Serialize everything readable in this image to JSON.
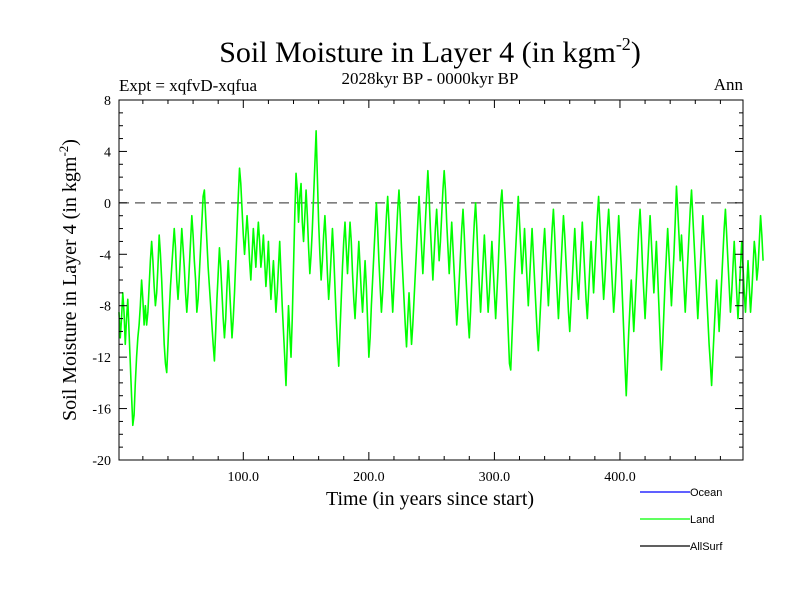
{
  "chart_data": {
    "type": "line",
    "title": "Soil Moisture in Layer 4 (in kgm",
    "title_sup": "-2",
    "title_close": ")",
    "subtitle_left": "Expt = xqfvD-xqfua",
    "subtitle_center": "2028kyr BP - 0000kyr BP",
    "subtitle_right": "Ann",
    "xlabel": "Time (in years since start)",
    "ylabel": "Soil Moisture in Layer 4 (in kgm",
    "ylabel_sup": "-2",
    "ylabel_close": ")",
    "xlim": [
      1,
      498
    ],
    "ylim": [
      -20,
      8
    ],
    "x_ticks": [
      100,
      200,
      300,
      400
    ],
    "x_tick_labels": [
      "100.0",
      "200.0",
      "300.0",
      "400.0"
    ],
    "y_ticks": [
      8,
      4,
      0,
      -4,
      -8,
      -12,
      -16,
      -20
    ],
    "y_tick_labels": [
      "8",
      "4",
      "0",
      "-4",
      "-8",
      "-12",
      "-16",
      "-20"
    ],
    "reference_line": {
      "y": 0,
      "style": "dashed",
      "color": "#555555"
    },
    "legend": [
      {
        "name": "Ocean",
        "color": "#0000ff"
      },
      {
        "name": "Land",
        "color": "#00ff00"
      },
      {
        "name": "AllSurf",
        "color": "#000000"
      }
    ],
    "legend_position": "bottom-right",
    "series": [
      {
        "name": "Land",
        "color": "#00ff00",
        "x_start": 1,
        "x_step": 1,
        "values": [
          -8.5,
          -10.5,
          -9,
          -7,
          -8.5,
          -11,
          -9,
          -7.5,
          -10,
          -12.5,
          -15,
          -17.3,
          -16.5,
          -14,
          -12,
          -10.5,
          -9.5,
          -8,
          -6,
          -7.5,
          -9.5,
          -8,
          -9.5,
          -8.5,
          -6.5,
          -4.5,
          -3,
          -4.5,
          -6.5,
          -8,
          -7,
          -5,
          -2.5,
          -4,
          -6,
          -8.5,
          -11,
          -12.5,
          -13.2,
          -11,
          -8.5,
          -6.5,
          -5,
          -3.5,
          -2,
          -3.5,
          -6,
          -7.5,
          -6,
          -4,
          -2,
          -3.5,
          -5,
          -7,
          -8.5,
          -7,
          -5,
          -3,
          -1,
          -2.5,
          -4.5,
          -6,
          -8.5,
          -7.5,
          -5.5,
          -3.5,
          -1.5,
          0.5,
          1,
          -1,
          -3,
          -5,
          -6.5,
          -8,
          -9.5,
          -11,
          -12.3,
          -10,
          -7.5,
          -5.5,
          -3.5,
          -5,
          -7,
          -9,
          -10.5,
          -9,
          -6.5,
          -4.5,
          -6.5,
          -8.5,
          -10.5,
          -9,
          -7,
          -4.5,
          -2,
          0.5,
          2.7,
          1.5,
          -0.5,
          -2.5,
          -4,
          -2.5,
          -1,
          -2.5,
          -4.5,
          -6,
          -4,
          -2,
          -3.5,
          -5,
          -3,
          -1.5,
          -3,
          -5,
          -4,
          -2.5,
          -4.5,
          -6.5,
          -5,
          -3,
          -5.5,
          -7.5,
          -6,
          -4.5,
          -6.5,
          -8.5,
          -7,
          -5,
          -3,
          -5.5,
          -8,
          -10,
          -12,
          -14.2,
          -11,
          -8,
          -10,
          -12,
          -9,
          -5,
          -1,
          2.3,
          1,
          -1.5,
          0.5,
          1.5,
          -1.5,
          -3,
          -1,
          1,
          -1,
          -3.5,
          -5.5,
          -4,
          -2,
          0.5,
          3,
          5.6,
          2,
          -1.5,
          -4,
          -6,
          -4.5,
          -2.5,
          -1,
          -3,
          -5.5,
          -7.5,
          -6,
          -4,
          -2,
          -4,
          -6.5,
          -9,
          -11,
          -12.7,
          -10,
          -7.5,
          -5,
          -3,
          -1.5,
          -3.5,
          -5.5,
          -3.5,
          -1.5,
          -3,
          -5.5,
          -7.5,
          -9,
          -7,
          -5,
          -3,
          -5,
          -7,
          -8.5,
          -6.5,
          -4.5,
          -6.5,
          -9.2,
          -12,
          -10.5,
          -8,
          -6,
          -4,
          -2,
          0,
          -2,
          -4.5,
          -6.5,
          -8.5,
          -7,
          -5,
          -3,
          -1,
          0.5,
          -1.5,
          -4,
          -6.5,
          -8.5,
          -6.5,
          -4.5,
          -2.5,
          -0.5,
          1,
          -1,
          -3.5,
          -5.5,
          -7.5,
          -9.5,
          -11.2,
          -9,
          -7,
          -9,
          -11,
          -9.5,
          -7.5,
          -5.5,
          -3.5,
          -1.5,
          0.5,
          -1.5,
          -3.5,
          -5.5,
          -3.5,
          -1.5,
          0.5,
          2.5,
          0.5,
          -2,
          -4,
          -6,
          -4,
          -2,
          -0.5,
          -2.5,
          -4.5,
          -3,
          -1,
          1,
          2.5,
          1,
          -1.5,
          -3.5,
          -5.5,
          -3.5,
          -1.5,
          -3.5,
          -5.5,
          -7.5,
          -9.5,
          -8,
          -6,
          -4,
          -2,
          -0.5,
          -2.5,
          -5,
          -7,
          -9,
          -10.5,
          -8.5,
          -6,
          -3.5,
          -1.5,
          0,
          -2,
          -4.5,
          -6.5,
          -8.5,
          -6.5,
          -4.5,
          -2.5,
          -4.5,
          -6.5,
          -8.5,
          -7,
          -5,
          -3,
          -5,
          -7,
          -9,
          -7,
          -5,
          -2.5,
          0,
          1,
          -1,
          -3,
          -5,
          -7.5,
          -10,
          -12.5,
          -13,
          -10.5,
          -8,
          -5.5,
          -3.5,
          -1.5,
          0.5,
          -1.5,
          -3.5,
          -5.5,
          -4,
          -2,
          -4,
          -6,
          -8,
          -6,
          -4,
          -2,
          -4,
          -6,
          -8,
          -10,
          -11.5,
          -9.5,
          -7.5,
          -5.5,
          -3.5,
          -2,
          -4,
          -6,
          -8,
          -6,
          -4,
          -2,
          -0.5,
          -2.5,
          -5,
          -7,
          -9,
          -7,
          -5,
          -3,
          -1,
          -2.5,
          -4.5,
          -6.5,
          -8.5,
          -10,
          -8,
          -6,
          -4,
          -2,
          -4,
          -6,
          -7.5,
          -5.5,
          -3.5,
          -1.5,
          -3.5,
          -5.5,
          -7.5,
          -9,
          -7,
          -5,
          -3,
          -5,
          -7,
          -5,
          -3,
          -1,
          0.5,
          -1.5,
          -3.5,
          -5.5,
          -7.5,
          -6,
          -4,
          -2,
          -0.5,
          -2.5,
          -4.5,
          -6.5,
          -8.5,
          -7,
          -5,
          -3,
          -1,
          -3,
          -5,
          -7.5,
          -10,
          -12.5,
          -15,
          -12.5,
          -10,
          -8,
          -6,
          -8,
          -10,
          -8,
          -6,
          -4,
          -2,
          -0.5,
          -2.5,
          -5,
          -7,
          -9,
          -7,
          -5,
          -3,
          -1,
          -3,
          -5,
          -7,
          -5,
          -3,
          -5.5,
          -8,
          -10.5,
          -13,
          -11,
          -8.5,
          -6,
          -4,
          -2,
          -4,
          -6,
          -8,
          -6,
          -4,
          -1.5,
          1.3,
          -0.5,
          -2.5,
          -4.5,
          -2.5,
          -4.5,
          -6.5,
          -8.5,
          -6.5,
          -4.5,
          -2.5,
          -0.5,
          1,
          -1,
          -3,
          -5,
          -7,
          -9,
          -7,
          -5,
          -3,
          -1,
          -3,
          -5,
          -7,
          -9,
          -11,
          -12.5,
          -14.2,
          -12,
          -10,
          -8,
          -6,
          -8,
          -10,
          -8,
          -6,
          -4,
          -2,
          -0.5,
          -2.5,
          -4.5,
          -6.5,
          -8.5,
          -7,
          -5,
          -3,
          -5,
          -7,
          -9,
          -7,
          -5,
          -3,
          -5,
          -7,
          -8.5,
          -6.5,
          -4.5,
          -6.5,
          -8.5,
          -7,
          -5,
          -3,
          -4,
          -6,
          -5,
          -3,
          -1,
          -2.5,
          -4.5
        ]
      }
    ]
  }
}
